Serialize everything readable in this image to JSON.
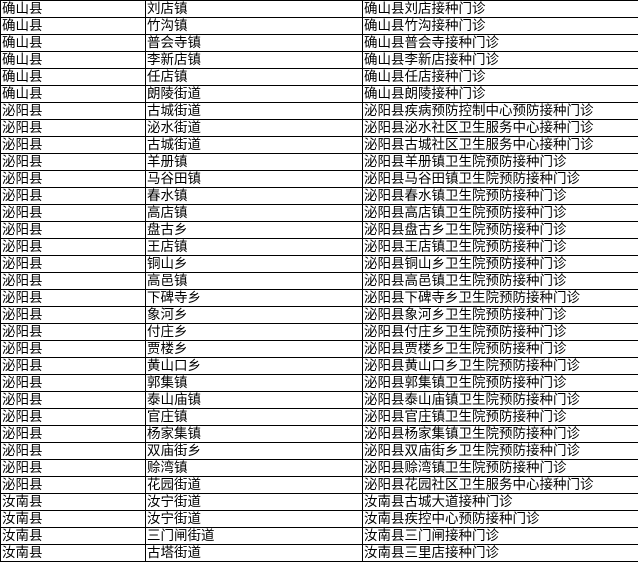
{
  "rows": [
    [
      "确山县",
      "刘店镇",
      "确山县刘店接种门诊"
    ],
    [
      "确山县",
      "竹沟镇",
      "确山县竹沟接种门诊"
    ],
    [
      "确山县",
      "普会寺镇",
      "确山县普会寺接种门诊"
    ],
    [
      "确山县",
      "李新店镇",
      "确山县李新店接种门诊"
    ],
    [
      "确山县",
      "任店镇",
      "确山县任店接种门诊"
    ],
    [
      "确山县",
      "朗陵街道",
      "确山县朗陵接种门诊"
    ],
    [
      "泌阳县",
      "古城街道",
      "泌阳县疾病预防控制中心预防接种门诊"
    ],
    [
      "泌阳县",
      "泌水街道",
      "泌阳县泌水社区卫生服务中心接种门诊"
    ],
    [
      "泌阳县",
      "古城街道",
      "泌阳县古城社区卫生服务中心接种门诊"
    ],
    [
      "泌阳县",
      "羊册镇",
      "泌阳县羊册镇卫生院预防接种门诊"
    ],
    [
      "泌阳县",
      "马谷田镇",
      "泌阳县马谷田镇卫生院预防接种门诊"
    ],
    [
      "泌阳县",
      "春水镇",
      "泌阳县春水镇卫生院预防接种门诊"
    ],
    [
      "泌阳县",
      "高店镇",
      "泌阳县高店镇卫生院预防接种门诊"
    ],
    [
      "泌阳县",
      "盘古乡",
      "泌阳县盘古乡卫生院预防接种门诊"
    ],
    [
      "泌阳县",
      "王店镇",
      "泌阳县王店镇卫生院预防接种门诊"
    ],
    [
      "泌阳县",
      "铜山乡",
      "泌阳县铜山乡卫生院预防接种门诊"
    ],
    [
      "泌阳县",
      "高邑镇",
      "泌阳县高邑镇卫生院预防接种门诊"
    ],
    [
      "泌阳县",
      "下碑寺乡",
      "泌阳县下碑寺乡卫生院预防接种门诊"
    ],
    [
      "泌阳县",
      "象河乡",
      "泌阳县象河乡卫生院预防接种门诊"
    ],
    [
      "泌阳县",
      "付庄乡",
      "泌阳县付庄乡卫生院预防接种门诊"
    ],
    [
      "泌阳县",
      "贾楼乡",
      "泌阳县贾楼乡卫生院预防接种门诊"
    ],
    [
      "泌阳县",
      "黄山口乡",
      "泌阳县黄山口乡卫生院预防接种门诊"
    ],
    [
      "泌阳县",
      "郭集镇",
      "泌阳县郭集镇卫生院预防接种门诊"
    ],
    [
      "泌阳县",
      "泰山庙镇",
      "泌阳县泰山庙镇卫生院预防接种门诊"
    ],
    [
      "泌阳县",
      "官庄镇",
      "泌阳县官庄镇卫生院预防接种门诊"
    ],
    [
      "泌阳县",
      "杨家集镇",
      "泌阳县杨家集镇卫生院预防接种门诊"
    ],
    [
      "泌阳县",
      "双庙街乡",
      "泌阳县双庙街乡卫生院预防接种门诊"
    ],
    [
      "泌阳县",
      "赊湾镇",
      "泌阳县赊湾镇卫生院预防接种门诊"
    ],
    [
      "泌阳县",
      "花园街道",
      "泌阳县花园社区卫生服务中心接种门诊"
    ],
    [
      "汝南县",
      "汝宁街道",
      "汝南县古城大道接种门诊"
    ],
    [
      "汝南县",
      "汝宁街道",
      "汝南县疾控中心预防接种门诊"
    ],
    [
      "汝南县",
      "三门闸街道",
      "汝南县三门闸接种门诊"
    ],
    [
      "汝南县",
      "古塔街道",
      "汝南县三里店接种门诊"
    ]
  ]
}
